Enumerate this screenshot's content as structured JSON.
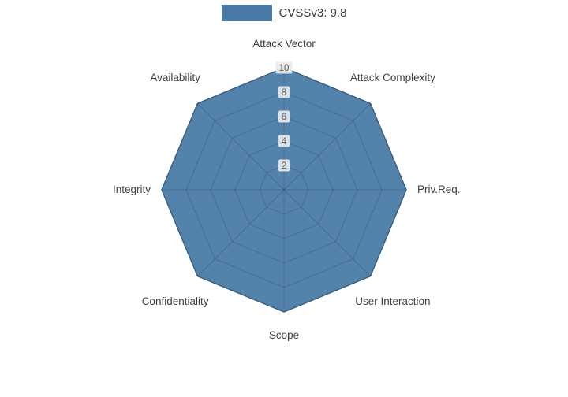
{
  "legend": {
    "label": "CVSSv3: 9.8",
    "swatch_color": "#4A7BA7"
  },
  "chart_data": {
    "type": "radar",
    "title": "CVSSv3: 9.8",
    "categories": [
      "Attack Vector",
      "Attack Complexity",
      "Priv.Req.",
      "User Interaction",
      "Scope",
      "Confidentiality",
      "Integrity",
      "Availability"
    ],
    "series": [
      {
        "name": "CVSSv3: 9.8",
        "values": [
          10,
          10,
          10,
          10,
          10,
          10,
          10,
          10
        ]
      }
    ],
    "ticks": [
      2,
      4,
      6,
      8,
      10
    ],
    "max": 10,
    "rmin": 0,
    "grid": true,
    "legend_position": "top",
    "fill_color": "#4A7BA7",
    "stroke_color": "#3D6A92",
    "grid_line_color": "#2F3E4E",
    "tick_box_color": "#e9e9e9",
    "tick_text_color": "#606060",
    "axis_label_color": "#3f3f3f"
  }
}
